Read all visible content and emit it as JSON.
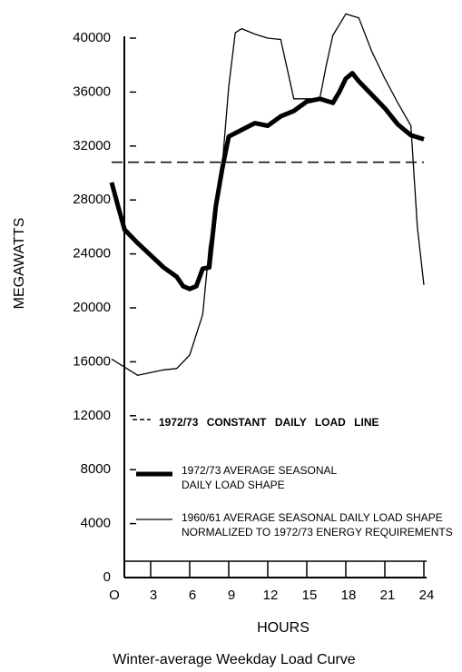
{
  "chart_data": {
    "type": "line",
    "title": "Winter-average  Weekday  Load  Curve",
    "x_label": "HOURS",
    "y_label": "MEGAWATTS",
    "xlim": [
      0,
      24
    ],
    "xticks": [
      {
        "value": 0,
        "label": "O"
      },
      3,
      6,
      9,
      12,
      15,
      18,
      21,
      24
    ],
    "ylim": [
      0,
      40000
    ],
    "yticks": [
      0,
      4000,
      8000,
      12000,
      16000,
      20000,
      24000,
      28000,
      32000,
      36000,
      40000
    ],
    "grid": false,
    "series": [
      {
        "name": "1972/73  CONSTANT  DAILY  LOAD LINE",
        "color": "#000000",
        "style": "dashed",
        "x": [
          0,
          24
        ],
        "values": [
          30800,
          30800
        ]
      },
      {
        "name": "1972/73 AVERAGE SEASONAL DAILY LOAD SHAPE",
        "color": "#000000",
        "style": "thick",
        "x": [
          0,
          0.5,
          1,
          2,
          3,
          4,
          5,
          5.5,
          6,
          6.5,
          7,
          7.5,
          8,
          8.5,
          9,
          10,
          11,
          12,
          13,
          14,
          15,
          16,
          17,
          17.5,
          18,
          18.5,
          19,
          20,
          21,
          22,
          23,
          24
        ],
        "values": [
          29300,
          27500,
          25800,
          24800,
          23900,
          23000,
          22300,
          21600,
          21400,
          21600,
          22900,
          23000,
          27500,
          30300,
          32700,
          33200,
          33700,
          33500,
          34200,
          34600,
          35300,
          35500,
          35200,
          36000,
          37000,
          37400,
          36800,
          35800,
          34800,
          33600,
          32800,
          32500
        ]
      },
      {
        "name": "1960/61 AVERAGE SEASONAL DAILY LOAD SHAPE NORMALIZED TO 1972/73 ENERGY REQUIREMENTS",
        "color": "#000000",
        "style": "thin",
        "x": [
          0,
          1.5,
          2,
          3,
          4,
          5,
          6,
          7,
          7.5,
          8.5,
          9,
          9.5,
          10,
          11,
          12,
          13,
          14,
          15,
          16,
          16.5,
          17,
          18,
          19,
          20,
          21,
          22,
          23,
          23.5,
          24
        ],
        "values": [
          16200,
          15300,
          15000,
          15200,
          15400,
          15500,
          16500,
          19500,
          24500,
          30500,
          36400,
          40400,
          40700,
          40300,
          40000,
          39900,
          35500,
          35500,
          35500,
          38000,
          40200,
          41800,
          41500,
          39000,
          37000,
          35200,
          33500,
          26000,
          21700
        ]
      }
    ]
  }
}
